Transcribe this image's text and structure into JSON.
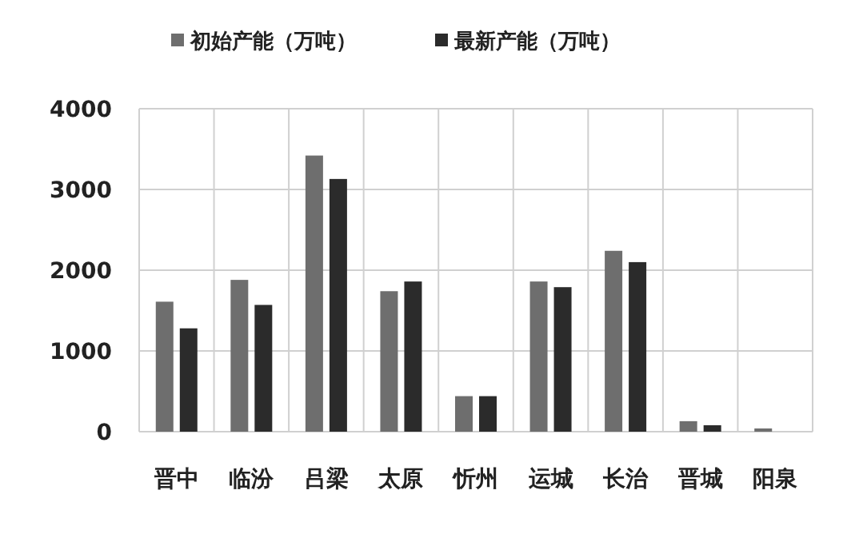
{
  "chart_data": {
    "type": "bar",
    "categories": [
      "晋中",
      "临汾",
      "吕梁",
      "太原",
      "忻州",
      "运城",
      "长治",
      "晋城",
      "阳泉"
    ],
    "series": [
      {
        "name": "初始产能（万吨）",
        "color": "#6e6e6e",
        "values": [
          1610,
          1880,
          3420,
          1740,
          440,
          1860,
          2240,
          130,
          40
        ]
      },
      {
        "name": "最新产能（万吨）",
        "color": "#2b2b2b",
        "values": [
          1280,
          1570,
          3130,
          1860,
          440,
          1790,
          2100,
          80,
          null
        ]
      }
    ],
    "ylim": [
      0,
      4000
    ],
    "yticks": [
      0,
      1000,
      2000,
      3000,
      4000
    ],
    "grid": true,
    "legend": "top"
  }
}
